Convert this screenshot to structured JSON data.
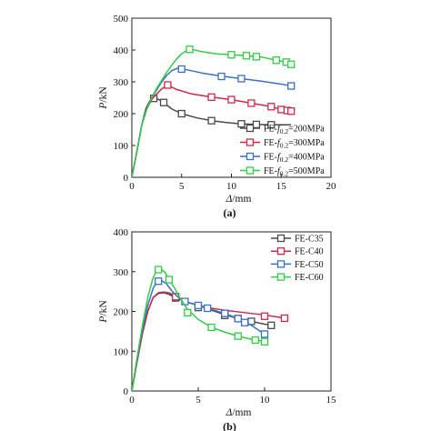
{
  "chart_data": [
    {
      "type": "line",
      "panel_label": "(a)",
      "xlabel": {
        "symbol": "Δ",
        "unit": "/mm"
      },
      "ylabel": {
        "symbol": "P",
        "unit": "/kN"
      },
      "xlim": [
        0,
        20
      ],
      "ylim": [
        0,
        500
      ],
      "xticks": [
        "0",
        "5",
        "10",
        "15",
        "20"
      ],
      "yticks": [
        "0",
        "100",
        "200",
        "300",
        "400",
        "500"
      ],
      "grid": false,
      "legend_position": "bottom-right",
      "series": [
        {
          "name": "FE-f0.2=200MPa",
          "legend": {
            "prefix": "FE-",
            "symbol": "f",
            "sub": "0.2",
            "suffix": "=200MPa"
          },
          "color": "#4a4a4a",
          "x": [
            0,
            0.5,
            1.0,
            1.4,
            1.8,
            2.2,
            2.6,
            3.2,
            4.0,
            5.0,
            6.5,
            8.0,
            9.5,
            11.0,
            12.5,
            14.0,
            15.5,
            16.0
          ],
          "y": [
            0,
            80,
            165,
            215,
            240,
            248,
            246,
            235,
            215,
            200,
            187,
            178,
            172,
            168,
            166,
            165,
            165,
            165
          ],
          "markers_x": [
            2.2,
            3.2,
            5.0,
            8.0,
            11.0,
            12.5,
            14.0
          ],
          "markers_y": [
            248,
            235,
            200,
            178,
            168,
            166,
            165
          ]
        },
        {
          "name": "FE-f0.2=300MPa",
          "legend": {
            "prefix": "FE-",
            "symbol": "f",
            "sub": "0.2",
            "suffix": "=300MPa"
          },
          "color": "#cc2a4a",
          "x": [
            0,
            0.5,
            1.0,
            1.5,
            2.0,
            2.5,
            3.0,
            3.6,
            4.5,
            6.0,
            8.0,
            10.0,
            12.0,
            14.0,
            15.0,
            16.0
          ],
          "y": [
            0,
            80,
            165,
            215,
            245,
            262,
            278,
            290,
            276,
            262,
            252,
            244,
            233,
            222,
            213,
            208
          ],
          "markers_x": [
            3.6,
            8.0,
            10.0,
            12.0,
            14.0,
            15.0,
            15.6,
            16.0
          ],
          "markers_y": [
            290,
            252,
            244,
            233,
            222,
            213,
            210,
            208
          ]
        },
        {
          "name": "FE-f0.2=400MPa",
          "legend": {
            "prefix": "FE-",
            "symbol": "f",
            "sub": "0.2",
            "suffix": "=400MPa"
          },
          "color": "#3a6fc8",
          "x": [
            0,
            0.5,
            1.0,
            1.5,
            2.0,
            2.5,
            3.0,
            3.5,
            4.0,
            4.6,
            5.5,
            7.0,
            9.0,
            11.0,
            13.0,
            15.0,
            16.0
          ],
          "y": [
            0,
            80,
            165,
            215,
            250,
            275,
            300,
            320,
            335,
            343,
            338,
            328,
            318,
            310,
            302,
            293,
            287
          ],
          "markers_x": [
            5.0,
            9.0,
            11.0,
            16.0
          ],
          "markers_y": [
            340,
            317,
            310,
            287
          ]
        },
        {
          "name": "FE-f0.2=500MPa",
          "legend": {
            "prefix": "FE-",
            "symbol": "f",
            "sub": "0.2",
            "suffix": "=500MPa"
          },
          "color": "#33cc44",
          "x": [
            0,
            0.5,
            1.0,
            1.5,
            2.0,
            2.5,
            3.0,
            3.5,
            4.0,
            4.5,
            5.0,
            5.5,
            6.0,
            7.0,
            8.5,
            10.0,
            11.5,
            13.0,
            14.5,
            15.5,
            16.0
          ],
          "y": [
            0,
            80,
            165,
            215,
            250,
            280,
            305,
            330,
            352,
            372,
            388,
            398,
            402,
            395,
            388,
            385,
            382,
            378,
            368,
            362,
            355
          ],
          "markers_x": [
            5.8,
            10.0,
            11.5,
            12.5,
            14.5,
            15.5,
            16.0
          ],
          "markers_y": [
            402,
            385,
            382,
            379,
            368,
            362,
            355
          ]
        }
      ]
    },
    {
      "type": "line",
      "panel_label": "(b)",
      "xlabel": {
        "symbol": "Δ",
        "unit": "/mm"
      },
      "ylabel": {
        "symbol": "P",
        "unit": "/kN"
      },
      "xlim": [
        0,
        15
      ],
      "ylim": [
        0,
        400
      ],
      "xticks": [
        "0",
        "5",
        "10",
        "15"
      ],
      "yticks": [
        "0",
        "100",
        "200",
        "300",
        "400"
      ],
      "grid": false,
      "legend_position": "top-right",
      "series": [
        {
          "name": "FE-C35",
          "legend": {
            "prefix": "FE-C35",
            "symbol": "",
            "sub": "",
            "suffix": ""
          },
          "color": "#4a4a4a",
          "x": [
            0,
            0.4,
            0.8,
            1.2,
            1.6,
            2.0,
            2.4,
            2.8,
            3.3,
            4.0,
            5.0,
            6.0,
            7.0,
            8.0,
            9.0,
            10.0,
            10.8
          ],
          "y": [
            0,
            75,
            145,
            200,
            235,
            245,
            247,
            243,
            234,
            225,
            215,
            203,
            192,
            182,
            175,
            168,
            165
          ],
          "markers_x": [
            3.3,
            5.0,
            7.0,
            8.0,
            9.0,
            10.5
          ],
          "markers_y": [
            234,
            210,
            190,
            182,
            175,
            165
          ]
        },
        {
          "name": "FE-C40",
          "legend": {
            "prefix": "FE-C40",
            "symbol": "",
            "sub": "",
            "suffix": ""
          },
          "color": "#cc2a4a",
          "x": [
            0,
            0.4,
            0.8,
            1.2,
            1.6,
            2.0,
            2.4,
            2.8,
            3.3,
            4.0,
            5.0,
            6.0,
            7.0,
            8.0,
            9.0,
            10.0,
            11.0,
            11.8
          ],
          "y": [
            0,
            75,
            145,
            200,
            235,
            247,
            249,
            247,
            237,
            225,
            215,
            208,
            203,
            199,
            195,
            191,
            186,
            182
          ],
          "markers_x": [
            3.3,
            7.0,
            10.0,
            11.5
          ],
          "markers_y": [
            237,
            195,
            188,
            183
          ]
        },
        {
          "name": "FE-C50",
          "legend": {
            "prefix": "FE-C50",
            "symbol": "",
            "sub": "",
            "suffix": ""
          },
          "color": "#3a6fc8",
          "x": [
            0,
            0.4,
            0.8,
            1.2,
            1.6,
            1.9,
            2.2,
            2.6,
            3.0,
            3.4,
            4.0,
            5.0,
            6.0,
            7.0,
            8.0,
            9.0,
            10.0
          ],
          "y": [
            0,
            80,
            155,
            215,
            258,
            275,
            278,
            270,
            252,
            238,
            225,
            215,
            205,
            195,
            182,
            165,
            143
          ],
          "markers_x": [
            2.0,
            4.0,
            5.0,
            5.7,
            7.0,
            8.0,
            8.5,
            10.0
          ],
          "markers_y": [
            276,
            225,
            215,
            208,
            195,
            182,
            172,
            143
          ]
        },
        {
          "name": "FE-C60",
          "legend": {
            "prefix": "FE-C60",
            "symbol": "",
            "sub": "",
            "suffix": ""
          },
          "color": "#33cc44",
          "x": [
            0,
            0.4,
            0.8,
            1.2,
            1.6,
            1.9,
            2.2,
            2.5,
            2.8,
            3.2,
            3.6,
            4.2,
            5.0,
            6.0,
            7.0,
            8.0,
            9.0,
            10.0
          ],
          "y": [
            0,
            85,
            165,
            235,
            285,
            303,
            306,
            298,
            280,
            260,
            235,
            205,
            180,
            160,
            148,
            138,
            130,
            124
          ],
          "markers_x": [
            2.0,
            2.8,
            4.2,
            6.0,
            8.0,
            9.3,
            10.0
          ],
          "markers_y": [
            305,
            280,
            197,
            160,
            138,
            128,
            124
          ]
        }
      ]
    }
  ]
}
